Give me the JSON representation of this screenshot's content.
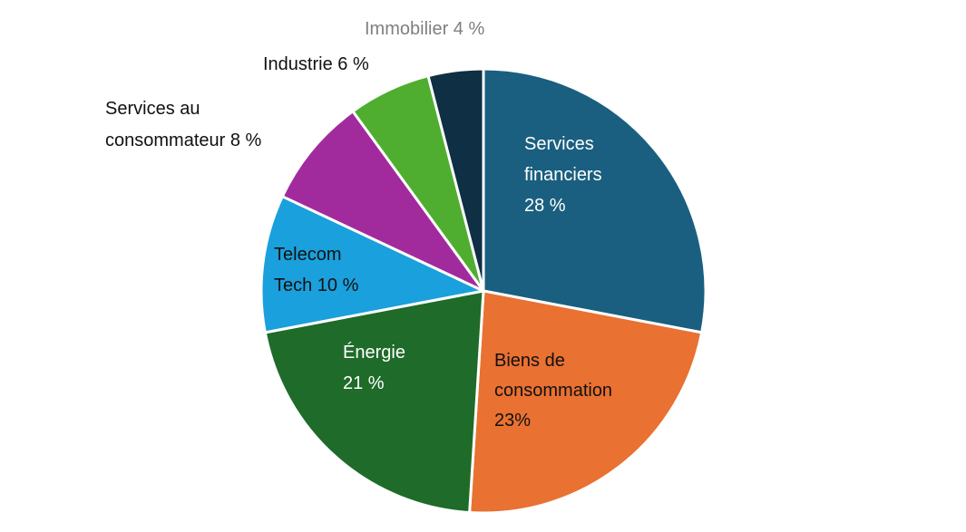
{
  "chart_data": {
    "type": "pie",
    "slices": [
      {
        "name": "Services financiers",
        "value": 28,
        "color": "#1a5f7f",
        "label_lines": [
          "Services",
          "financiers",
          "28 %"
        ],
        "label_color": "#ffffff"
      },
      {
        "name": "Biens de consommation",
        "value": 23,
        "color": "#e97132",
        "label_lines": [
          "Biens de",
          "consommation",
          "23%"
        ],
        "label_color": "#111111"
      },
      {
        "name": "Énergie",
        "value": 21,
        "color": "#1f6b2a",
        "label_lines": [
          "Énergie",
          "21 %"
        ],
        "label_color": "#ffffff"
      },
      {
        "name": "Telecom Tech",
        "value": 10,
        "color": "#1aa0dc",
        "label_lines": [
          "Telecom",
          "Tech 10 %"
        ],
        "label_color": "#111111"
      },
      {
        "name": "Services au consommateur",
        "value": 8,
        "color": "#a12b9d",
        "label_lines": [
          "Services au",
          "consommateur 8 %"
        ],
        "label_color": "#111111"
      },
      {
        "name": "Industrie",
        "value": 6,
        "color": "#4fae2f",
        "label_lines": [
          "Industrie 6 %"
        ],
        "label_color": "#111111"
      },
      {
        "name": "Immobilier",
        "value": 4,
        "color": "#0e2f44",
        "label_lines": [
          "Immobilier 4 %"
        ],
        "label_color": "#7f7f7f"
      }
    ]
  }
}
